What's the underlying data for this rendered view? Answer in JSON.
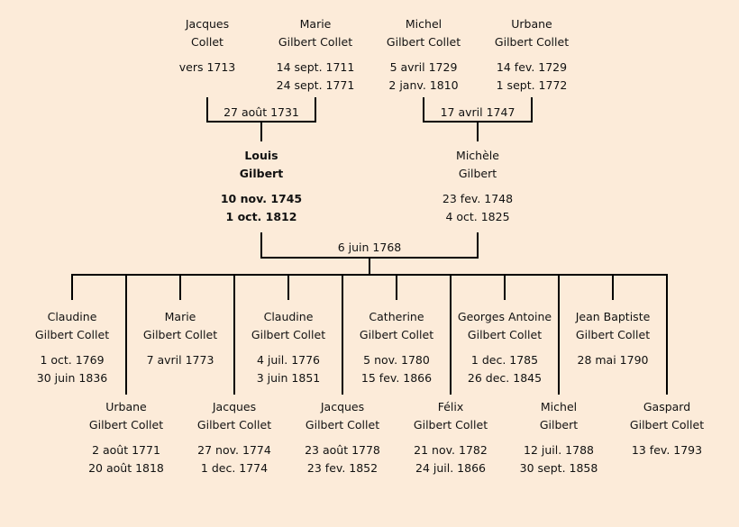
{
  "colors": {
    "background": "#fcebd9",
    "lines": "#000000"
  },
  "grandparents": [
    {
      "first": "Jacques",
      "last": "Collet",
      "dates": [
        "vers 1713"
      ]
    },
    {
      "first": "Marie",
      "last": "Gilbert Collet",
      "dates": [
        "14 sept. 1711",
        "24 sept. 1771"
      ]
    },
    {
      "first": "Michel",
      "last": "Gilbert Collet",
      "dates": [
        "5 avril 1729",
        "2 janv. 1810"
      ]
    },
    {
      "first": "Urbane",
      "last": "Gilbert Collet",
      "dates": [
        "14 fev. 1729",
        "1 sept. 1772"
      ]
    }
  ],
  "grandparent_marriages": [
    "27 août 1731",
    "17 avril 1747"
  ],
  "parents": [
    {
      "first": "Louis",
      "last": "Gilbert",
      "dates": [
        "10 nov. 1745",
        "1 oct. 1812"
      ],
      "highlighted": true
    },
    {
      "first": "Michèle",
      "last": "Gilbert",
      "dates": [
        "23 fev. 1748",
        "4 oct. 1825"
      ]
    }
  ],
  "parent_marriage": "6 juin 1768",
  "children": [
    {
      "first": "Claudine",
      "last": "Gilbert Collet",
      "dates": [
        "1 oct. 1769",
        "30 juin 1836"
      ]
    },
    {
      "first": "Urbane",
      "last": "Gilbert Collet",
      "dates": [
        "2 août 1771",
        "20 août 1818"
      ]
    },
    {
      "first": "Marie",
      "last": "Gilbert Collet",
      "dates": [
        "7 avril 1773"
      ]
    },
    {
      "first": "Jacques",
      "last": "Gilbert Collet",
      "dates": [
        "27 nov. 1774",
        "1 dec. 1774"
      ]
    },
    {
      "first": "Claudine",
      "last": "Gilbert Collet",
      "dates": [
        "4 juil. 1776",
        "3 juin 1851"
      ]
    },
    {
      "first": "Jacques",
      "last": "Gilbert Collet",
      "dates": [
        "23 août 1778",
        "23 fev. 1852"
      ]
    },
    {
      "first": "Catherine",
      "last": "Gilbert Collet",
      "dates": [
        "5 nov. 1780",
        "15 fev. 1866"
      ]
    },
    {
      "first": "Félix",
      "last": "Gilbert Collet",
      "dates": [
        "21 nov. 1782",
        "24 juil. 1866"
      ]
    },
    {
      "first": "Georges Antoine",
      "last": "Gilbert Collet",
      "dates": [
        "1 dec. 1785",
        "26 dec. 1845"
      ]
    },
    {
      "first": "Michel",
      "last": "Gilbert",
      "dates": [
        "12 juil. 1788",
        "30 sept. 1858"
      ]
    },
    {
      "first": "Jean Baptiste",
      "last": "Gilbert Collet",
      "dates": [
        "28 mai 1790"
      ]
    },
    {
      "first": "Gaspard",
      "last": "Gilbert Collet",
      "dates": [
        "13 fev. 1793"
      ]
    }
  ]
}
